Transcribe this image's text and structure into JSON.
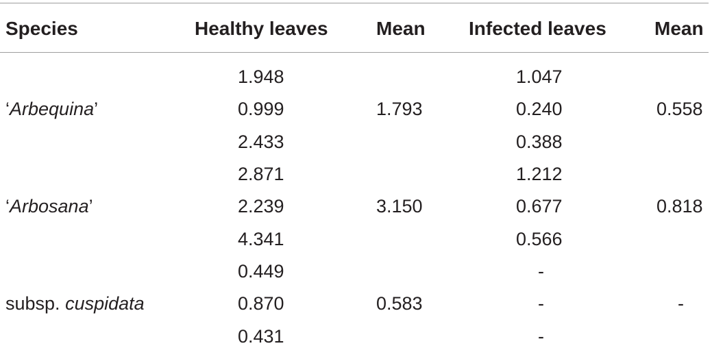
{
  "table": {
    "headers": {
      "species": "Species",
      "healthy": "Healthy leaves",
      "healthy_mean": "Mean",
      "infected": "Infected leaves",
      "infected_mean": "Mean"
    },
    "groups": [
      {
        "species_prefix": "‘",
        "species_italic": "Arbequina",
        "species_suffix": "’",
        "healthy": [
          "1.948",
          "0.999",
          "2.433"
        ],
        "healthy_mean": "1.793",
        "infected": [
          "1.047",
          "0.240",
          "0.388"
        ],
        "infected_mean": "0.558"
      },
      {
        "species_prefix": "‘",
        "species_italic": "Arbosana",
        "species_suffix": "’",
        "healthy": [
          "2.871",
          "2.239",
          "4.341"
        ],
        "healthy_mean": "3.150",
        "infected": [
          "1.212",
          "0.677",
          "0.566"
        ],
        "infected_mean": "0.818"
      },
      {
        "species_prefix": "subsp. ",
        "species_italic": "cuspidata",
        "species_suffix": "",
        "healthy": [
          "0.449",
          "0.870",
          "0.431"
        ],
        "healthy_mean": "0.583",
        "infected": [
          "-",
          "-",
          "-"
        ],
        "infected_mean": "-"
      }
    ]
  }
}
